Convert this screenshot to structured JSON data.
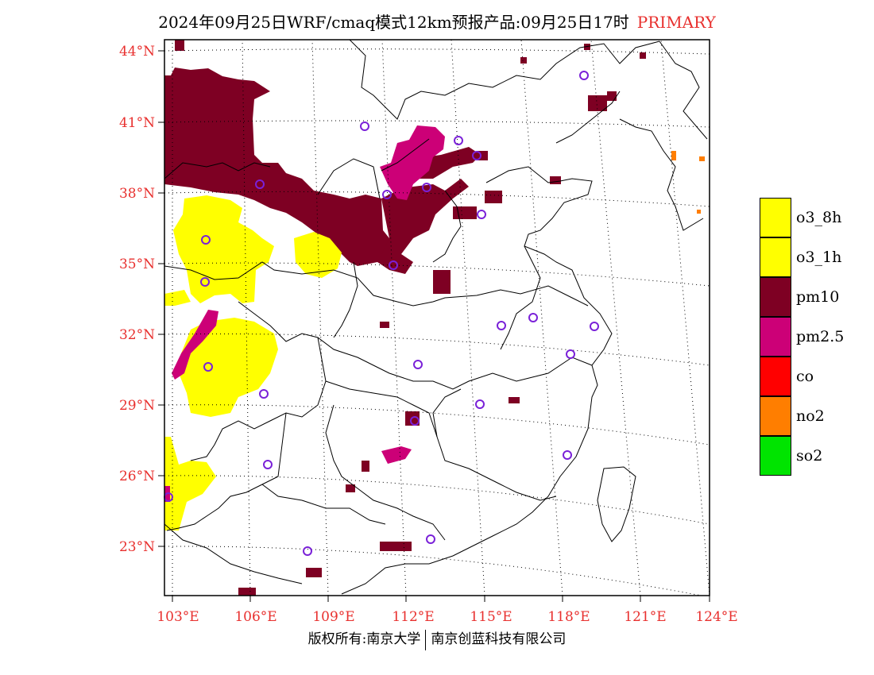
{
  "title": {
    "main": "2024年09月25日WRF/cmaq模式12km预报产品:09月25日17时",
    "tag": "PRIMARY"
  },
  "axes": {
    "lat_labels": [
      "44°N",
      "41°N",
      "38°N",
      "35°N",
      "32°N",
      "29°N",
      "26°N",
      "23°N"
    ],
    "lon_labels": [
      "103°E",
      "106°E",
      "109°E",
      "112°E",
      "115°E",
      "118°E",
      "121°E",
      "124°E"
    ],
    "label_color": "#e8302e"
  },
  "legend": [
    {
      "label": "o3_8h",
      "color": "#ffff00"
    },
    {
      "label": "o3_1h",
      "color": "#ffff00"
    },
    {
      "label": "pm10",
      "color": "#7e0023"
    },
    {
      "label": "pm2.5",
      "color": "#cc0077"
    },
    {
      "label": "co",
      "color": "#ff0000"
    },
    {
      "label": "no2",
      "color": "#ff7e00"
    },
    {
      "label": "so2",
      "color": "#00e400"
    }
  ],
  "footer": {
    "left": "版权所有:南京大学",
    "right": "南京创蓝科技有限公司"
  }
}
